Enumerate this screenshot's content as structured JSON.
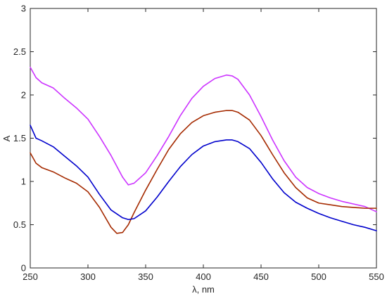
{
  "chart_data": {
    "type": "line",
    "title": "",
    "xlabel": "λ, nm",
    "ylabel": "A",
    "xlim": [
      250,
      550
    ],
    "ylim": [
      0,
      3
    ],
    "x_ticks": [
      250,
      300,
      350,
      400,
      450,
      500,
      550
    ],
    "y_ticks": [
      0,
      0.5,
      1,
      1.5,
      2,
      2.5,
      3
    ],
    "x_tick_labels": [
      "250",
      "300",
      "350",
      "400",
      "450",
      "500",
      "550"
    ],
    "y_tick_labels": [
      "0",
      "0.5",
      "1",
      "1.5",
      "2",
      "2.5",
      "3"
    ],
    "grid": false,
    "legend": "none",
    "series": [
      {
        "color": "#cc33ff",
        "x": [
          250,
          255,
          260,
          270,
          280,
          290,
          300,
          310,
          320,
          330,
          335,
          340,
          350,
          360,
          370,
          380,
          390,
          400,
          410,
          420,
          425,
          430,
          440,
          450,
          460,
          470,
          480,
          490,
          500,
          510,
          520,
          530,
          540,
          550
        ],
        "y": [
          2.32,
          2.2,
          2.14,
          2.08,
          1.96,
          1.85,
          1.72,
          1.52,
          1.3,
          1.05,
          0.96,
          0.98,
          1.1,
          1.3,
          1.52,
          1.76,
          1.96,
          2.1,
          2.19,
          2.23,
          2.22,
          2.18,
          2.0,
          1.75,
          1.48,
          1.24,
          1.05,
          0.93,
          0.86,
          0.81,
          0.77,
          0.74,
          0.71,
          0.65
        ]
      },
      {
        "color": "#a52a00",
        "x": [
          250,
          255,
          260,
          270,
          280,
          290,
          300,
          310,
          320,
          325,
          330,
          335,
          340,
          350,
          360,
          370,
          380,
          390,
          400,
          410,
          420,
          425,
          430,
          440,
          450,
          460,
          470,
          480,
          490,
          500,
          510,
          520,
          530,
          540,
          550
        ],
        "y": [
          1.33,
          1.21,
          1.16,
          1.11,
          1.04,
          0.98,
          0.88,
          0.7,
          0.47,
          0.4,
          0.41,
          0.5,
          0.64,
          0.9,
          1.14,
          1.37,
          1.55,
          1.68,
          1.76,
          1.8,
          1.82,
          1.82,
          1.8,
          1.71,
          1.53,
          1.31,
          1.1,
          0.93,
          0.81,
          0.75,
          0.73,
          0.71,
          0.7,
          0.69,
          0.69
        ]
      },
      {
        "color": "#0000cc",
        "x": [
          250,
          255,
          260,
          270,
          280,
          290,
          300,
          310,
          320,
          330,
          335,
          340,
          350,
          360,
          370,
          380,
          390,
          400,
          410,
          420,
          425,
          430,
          440,
          450,
          460,
          470,
          480,
          490,
          500,
          510,
          520,
          530,
          540,
          550
        ],
        "y": [
          1.65,
          1.5,
          1.47,
          1.4,
          1.29,
          1.18,
          1.05,
          0.85,
          0.67,
          0.58,
          0.56,
          0.57,
          0.66,
          0.82,
          1.0,
          1.17,
          1.31,
          1.41,
          1.46,
          1.48,
          1.48,
          1.46,
          1.38,
          1.22,
          1.03,
          0.87,
          0.76,
          0.69,
          0.63,
          0.58,
          0.54,
          0.5,
          0.47,
          0.43
        ]
      }
    ]
  }
}
